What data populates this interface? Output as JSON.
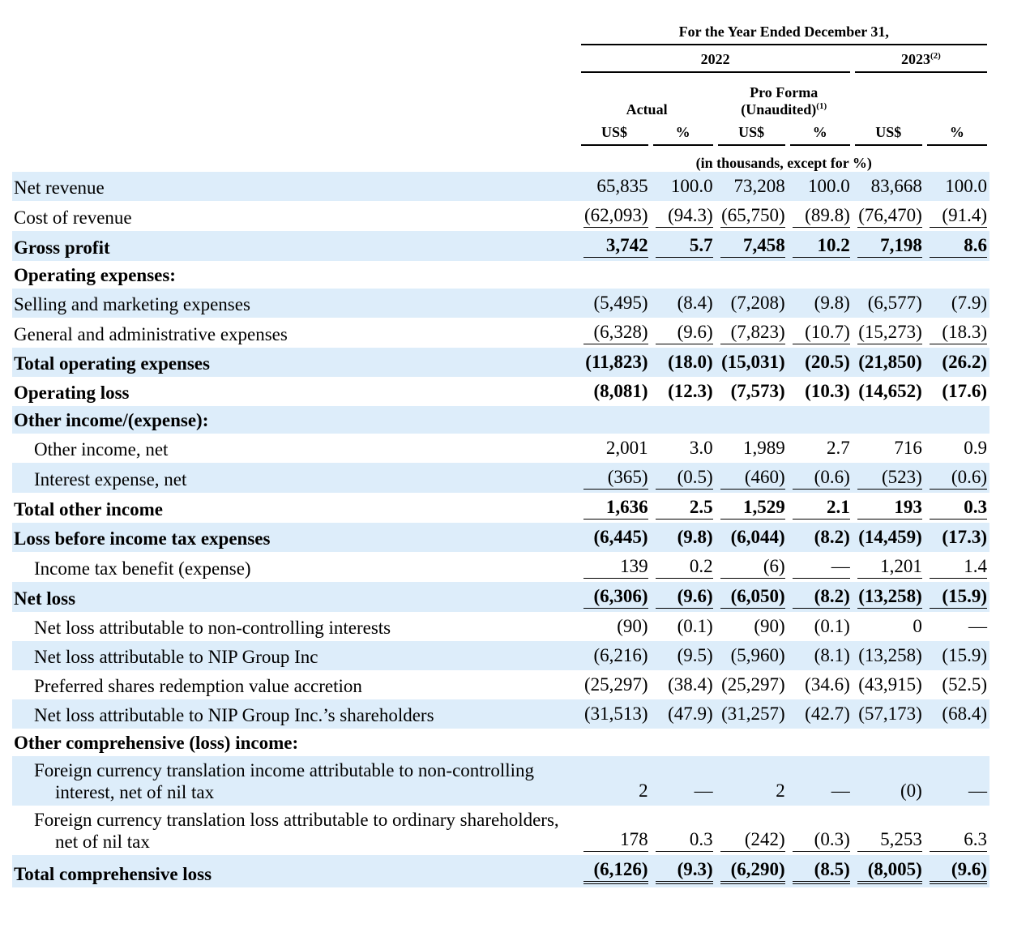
{
  "header": {
    "period": "For the Year Ended December 31,",
    "year_2022": "2022",
    "year_2023": "2023",
    "year_2023_note": "(2)",
    "actual": "Actual",
    "pro_forma": "Pro Forma",
    "unaudited": "(Unaudited)",
    "unaudited_note": "(1)",
    "columns": [
      "US$",
      "%",
      "US$",
      "%",
      "US$",
      "%"
    ],
    "units": "(in thousands, except for %)"
  },
  "table": {
    "rows": [
      {
        "label": "Net revenue",
        "cells": [
          "65,835",
          "100.0",
          "73,208",
          "100.0",
          "83,668",
          "100.0"
        ]
      },
      {
        "label": "Cost of revenue",
        "cells": [
          "(62,093)",
          "(94.3)",
          "(65,750)",
          "(89.8)",
          "(76,470)",
          "(91.4)"
        ],
        "underline": "single"
      },
      {
        "label": "Gross profit",
        "bold": true,
        "cells": [
          "3,742",
          "5.7",
          "7,458",
          "10.2",
          "7,198",
          "8.6"
        ],
        "underline": "single"
      },
      {
        "label": "Operating expenses:",
        "bold": true
      },
      {
        "label": "Selling and marketing expenses",
        "cells": [
          "(5,495)",
          "(8.4)",
          "(7,208)",
          "(9.8)",
          "(6,577)",
          "(7.9)"
        ]
      },
      {
        "label": "General and administrative expenses",
        "cells": [
          "(6,328)",
          "(9.6)",
          "(7,823)",
          "(10.7)",
          "(15,273)",
          "(18.3)"
        ],
        "underline": "single"
      },
      {
        "label": "Total operating expenses",
        "bold": true,
        "cells": [
          "(11,823)",
          "(18.0)",
          "(15,031)",
          "(20.5)",
          "(21,850)",
          "(26.2)"
        ]
      },
      {
        "label": "Operating loss",
        "bold": true,
        "cells": [
          "(8,081)",
          "(12.3)",
          "(7,573)",
          "(10.3)",
          "(14,652)",
          "(17.6)"
        ]
      },
      {
        "label": "Other income/(expense):",
        "bold": true
      },
      {
        "label": "Other income, net",
        "indent": true,
        "cells": [
          "2,001",
          "3.0",
          "1,989",
          "2.7",
          "716",
          "0.9"
        ]
      },
      {
        "label": "Interest expense, net",
        "indent": true,
        "cells": [
          "(365)",
          "(0.5)",
          "(460)",
          "(0.6)",
          "(523)",
          "(0.6)"
        ],
        "underline": "single"
      },
      {
        "label": "Total other income",
        "bold": true,
        "cells": [
          "1,636",
          "2.5",
          "1,529",
          "2.1",
          "193",
          "0.3"
        ],
        "underline": "single"
      },
      {
        "label": "Loss before income tax expenses",
        "bold": true,
        "cells": [
          "(6,445)",
          "(9.8)",
          "(6,044)",
          "(8.2)",
          "(14,459)",
          "(17.3)"
        ]
      },
      {
        "label": "Income tax benefit (expense)",
        "indent": true,
        "cells": [
          "139",
          "0.2",
          "(6)",
          "—",
          "1,201",
          "1.4"
        ],
        "underline": "single"
      },
      {
        "label": "Net loss",
        "bold": true,
        "cells": [
          "(6,306)",
          "(9.6)",
          "(6,050)",
          "(8.2)",
          "(13,258)",
          "(15.9)"
        ],
        "underline": "single"
      },
      {
        "label": "Net loss attributable to non-controlling interests",
        "indent": true,
        "cells": [
          "(90)",
          "(0.1)",
          "(90)",
          "(0.1)",
          "0",
          "—"
        ]
      },
      {
        "label": "Net loss attributable to NIP Group Inc",
        "indent": true,
        "cells": [
          "(6,216)",
          "(9.5)",
          "(5,960)",
          "(8.1)",
          "(13,258)",
          "(15.9)"
        ]
      },
      {
        "label": "Preferred shares redemption value accretion",
        "indent": true,
        "cells": [
          "(25,297)",
          "(38.4)",
          "(25,297)",
          "(34.6)",
          "(43,915)",
          "(52.5)"
        ]
      },
      {
        "label": "Net loss attributable to NIP Group Inc.’s shareholders",
        "indent": true,
        "cells": [
          "(31,513)",
          "(47.9)",
          "(31,257)",
          "(42.7)",
          "(57,173)",
          "(68.4)"
        ]
      },
      {
        "label": "Other comprehensive (loss) income:",
        "bold": true
      },
      {
        "label": "Foreign currency translation income attributable to non-controlling interest, net of nil tax",
        "indent": true,
        "cells": [
          "2",
          "—",
          "2",
          "—",
          "(0)",
          "—"
        ]
      },
      {
        "label": "Foreign currency translation loss attributable to ordinary shareholders, net of nil tax",
        "indent": true,
        "cells": [
          "178",
          "0.3",
          "(242)",
          "(0.3)",
          "5,253",
          "6.3"
        ],
        "underline": "single"
      },
      {
        "label": "Total comprehensive loss",
        "bold": true,
        "cells": [
          "(6,126)",
          "(9.3)",
          "(6,290)",
          "(8.5)",
          "(8,005)",
          "(9.6)"
        ],
        "underline": "double"
      }
    ]
  }
}
